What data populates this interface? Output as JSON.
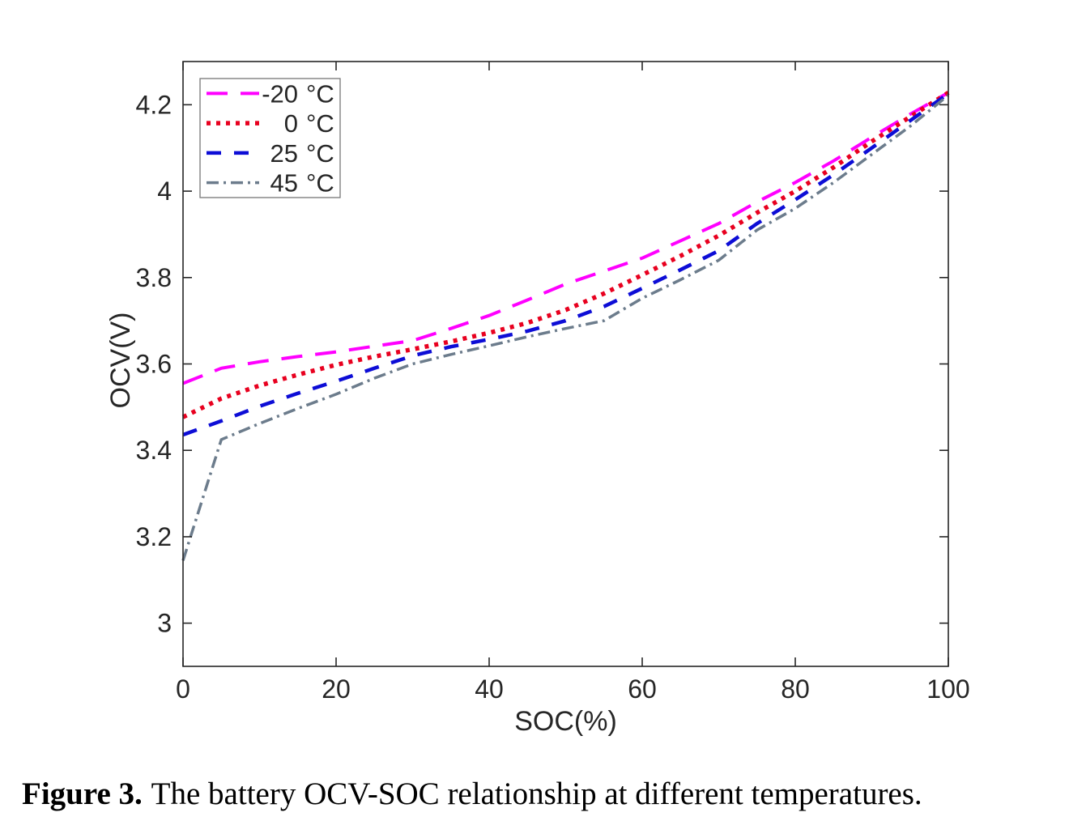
{
  "figure": {
    "caption_label": "Figure 3.",
    "caption_text": "The battery OCV-SOC relationship at different temperatures."
  },
  "chart_data": {
    "type": "line",
    "title": "",
    "xlabel": "SOC(%)",
    "ylabel": "OCV(V)",
    "xlim": [
      0,
      100
    ],
    "ylim": [
      2.9,
      4.3
    ],
    "xticks": {
      "values": [
        0,
        20,
        40,
        60,
        80,
        100
      ],
      "labels": [
        "0",
        "20",
        "40",
        "60",
        "80",
        "100"
      ]
    },
    "yticks": {
      "values": [
        3,
        3.2,
        3.4,
        3.6,
        3.8,
        4,
        4.2
      ],
      "labels": [
        "3",
        "3.2",
        "3.4",
        "3.6",
        "3.8",
        "4",
        "4.2"
      ]
    },
    "grid": false,
    "box": true,
    "legend_position": "top-left",
    "x": [
      0,
      5,
      10,
      15,
      20,
      25,
      30,
      35,
      40,
      45,
      50,
      55,
      60,
      65,
      70,
      75,
      80,
      85,
      90,
      95,
      100
    ],
    "series": [
      {
        "id": "m20",
        "name": "-20 °C",
        "label_value": "-20",
        "label_unit": "°C",
        "color": "#ff00ff",
        "style": "long-dash",
        "values": [
          3.555,
          3.59,
          3.605,
          3.617,
          3.628,
          3.641,
          3.654,
          3.682,
          3.712,
          3.748,
          3.785,
          3.815,
          3.845,
          3.885,
          3.925,
          3.975,
          4.02,
          4.07,
          4.125,
          4.178,
          4.228
        ]
      },
      {
        "id": "r0",
        "name": "0 °C",
        "label_value": "0",
        "label_unit": "°C",
        "color": "#e8001f",
        "style": "dotted",
        "values": [
          3.477,
          3.52,
          3.55,
          3.575,
          3.598,
          3.617,
          3.634,
          3.652,
          3.672,
          3.695,
          3.725,
          3.763,
          3.806,
          3.85,
          3.897,
          3.95,
          4.0,
          4.055,
          4.115,
          4.172,
          4.228
        ]
      },
      {
        "id": "b25",
        "name": "25 °C",
        "label_value": "25",
        "label_unit": "°C",
        "color": "#0d0dd6",
        "style": "dash",
        "values": [
          3.436,
          3.468,
          3.502,
          3.532,
          3.56,
          3.59,
          3.619,
          3.64,
          3.657,
          3.676,
          3.7,
          3.733,
          3.775,
          3.818,
          3.862,
          3.925,
          3.98,
          4.038,
          4.1,
          4.163,
          4.226
        ]
      },
      {
        "id": "g45",
        "name": "45 °C",
        "label_value": "45",
        "label_unit": "°C",
        "color": "#6c7c8c",
        "style": "dash-dot",
        "values": [
          3.145,
          3.425,
          3.462,
          3.497,
          3.53,
          3.567,
          3.6,
          3.622,
          3.642,
          3.663,
          3.682,
          3.7,
          3.752,
          3.795,
          3.84,
          3.91,
          3.96,
          4.02,
          4.085,
          4.15,
          4.222
        ]
      }
    ]
  }
}
